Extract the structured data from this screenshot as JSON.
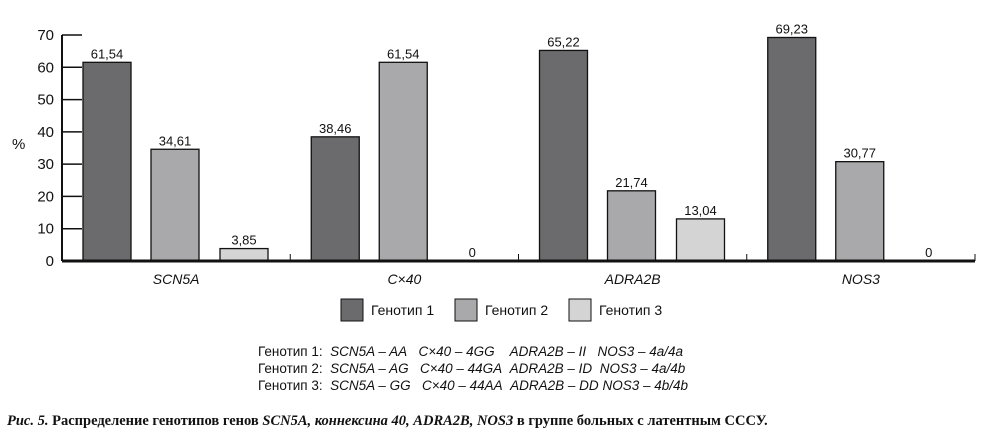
{
  "chart_data": {
    "type": "bar",
    "title": "",
    "xlabel": "",
    "ylabel": "%",
    "ylim": [
      0,
      70
    ],
    "yticks": [
      "0",
      "10",
      "20",
      "30",
      "40",
      "50",
      "60",
      "70"
    ],
    "categories": [
      "SCN5A",
      "C×40",
      "ADRA2B",
      "NOS3"
    ],
    "series": [
      {
        "name": "Генотип 1",
        "color": "#6b6b6d",
        "values": [
          61.54,
          38.46,
          65.22,
          69.23
        ],
        "labels": [
          "61,54",
          "38,46",
          "65,22",
          "69,23"
        ]
      },
      {
        "name": "Генотип 2",
        "color": "#a9a9ab",
        "values": [
          34.61,
          61.54,
          21.74,
          30.77
        ],
        "labels": [
          "34,61",
          "61,54",
          "21,74",
          "30,77"
        ]
      },
      {
        "name": "Генотип 3",
        "color": "#d4d4d4",
        "values": [
          3.85,
          0,
          13.04,
          0
        ],
        "labels": [
          "3,85",
          "0",
          "13,04",
          "0"
        ]
      }
    ],
    "legend_position": "bottom-center",
    "grid": false
  },
  "genotype_key": [
    {
      "label": "Генотип 1:",
      "items": [
        "SCN5A – AA",
        "C×40 – 4GG",
        "ADRA2B – II",
        "NOS3 – 4a/4a"
      ]
    },
    {
      "label": "Генотип 2:",
      "items": [
        "SCN5A – AG",
        "C×40 – 44GA",
        "ADRA2B – ID",
        "NOS3 – 4a/4b"
      ]
    },
    {
      "label": "Генотип 3:",
      "items": [
        "SCN5A – GG",
        "C×40 – 44AA",
        "ADRA2B – DD",
        "NOS3 – 4b/4b"
      ]
    }
  ],
  "caption": {
    "prefix": "Рис. 5.",
    "text1": " Распределение генотипов генов ",
    "gene1": "SCN5A, коннексина 40, ADRA2B, NOS3",
    "text2": "  в группе  больных с латентным СССУ."
  }
}
